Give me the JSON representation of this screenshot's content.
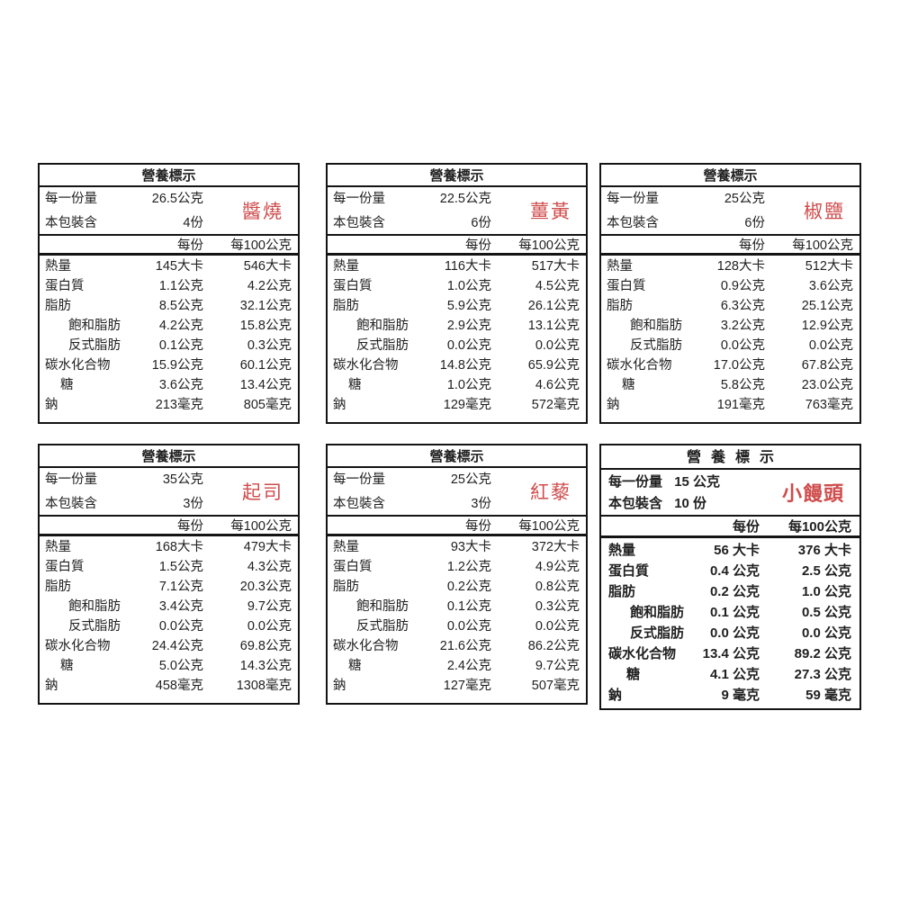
{
  "page": {
    "background": "#ffffff",
    "text_color": "#1f1f1f",
    "border_color": "#141414",
    "accent_red": "#cf4b4b"
  },
  "labels": [
    {
      "variant": "standard",
      "title": "營養標示",
      "product_name": "醬燒",
      "serving": {
        "size_label": "每一份量",
        "size_value": "26.5公克",
        "pack_label": "本包裝含",
        "pack_value": "4份"
      },
      "columns": {
        "per_serving": "每份",
        "per_100g": "每100公克"
      },
      "rows": [
        {
          "name": "熱量",
          "indent": 0,
          "per_serving": "145大卡",
          "per_100g": "546大卡"
        },
        {
          "name": "蛋白質",
          "indent": 0,
          "per_serving": "1.1公克",
          "per_100g": "4.2公克"
        },
        {
          "name": "脂肪",
          "indent": 0,
          "per_serving": "8.5公克",
          "per_100g": "32.1公克"
        },
        {
          "name": "飽和脂肪",
          "indent": 2,
          "per_serving": "4.2公克",
          "per_100g": "15.8公克"
        },
        {
          "name": "反式脂肪",
          "indent": 2,
          "per_serving": "0.1公克",
          "per_100g": "0.3公克"
        },
        {
          "name": "碳水化合物",
          "indent": 0,
          "per_serving": "15.9公克",
          "per_100g": "60.1公克"
        },
        {
          "name": "糖",
          "indent": 1,
          "per_serving": "3.6公克",
          "per_100g": "13.4公克"
        },
        {
          "name": "鈉",
          "indent": 0,
          "per_serving": "213毫克",
          "per_100g": "805毫克"
        }
      ]
    },
    {
      "variant": "standard",
      "title": "營養標示",
      "product_name": "薑黃",
      "serving": {
        "size_label": "每一份量",
        "size_value": "22.5公克",
        "pack_label": "本包裝含",
        "pack_value": "6份"
      },
      "columns": {
        "per_serving": "每份",
        "per_100g": "每100公克"
      },
      "rows": [
        {
          "name": "熱量",
          "indent": 0,
          "per_serving": "116大卡",
          "per_100g": "517大卡"
        },
        {
          "name": "蛋白質",
          "indent": 0,
          "per_serving": "1.0公克",
          "per_100g": "4.5公克"
        },
        {
          "name": "脂肪",
          "indent": 0,
          "per_serving": "5.9公克",
          "per_100g": "26.1公克"
        },
        {
          "name": "飽和脂肪",
          "indent": 2,
          "per_serving": "2.9公克",
          "per_100g": "13.1公克"
        },
        {
          "name": "反式脂肪",
          "indent": 2,
          "per_serving": "0.0公克",
          "per_100g": "0.0公克"
        },
        {
          "name": "碳水化合物",
          "indent": 0,
          "per_serving": "14.8公克",
          "per_100g": "65.9公克"
        },
        {
          "name": "糖",
          "indent": 1,
          "per_serving": "1.0公克",
          "per_100g": "4.6公克"
        },
        {
          "name": "鈉",
          "indent": 0,
          "per_serving": "129毫克",
          "per_100g": "572毫克"
        }
      ]
    },
    {
      "variant": "standard",
      "title": "營養標示",
      "product_name": "椒鹽",
      "serving": {
        "size_label": "每一份量",
        "size_value": "25公克",
        "pack_label": "本包裝含",
        "pack_value": "6份"
      },
      "columns": {
        "per_serving": "每份",
        "per_100g": "每100公克"
      },
      "rows": [
        {
          "name": "熱量",
          "indent": 0,
          "per_serving": "128大卡",
          "per_100g": "512大卡"
        },
        {
          "name": "蛋白質",
          "indent": 0,
          "per_serving": "0.9公克",
          "per_100g": "3.6公克"
        },
        {
          "name": "脂肪",
          "indent": 0,
          "per_serving": "6.3公克",
          "per_100g": "25.1公克"
        },
        {
          "name": "飽和脂肪",
          "indent": 2,
          "per_serving": "3.2公克",
          "per_100g": "12.9公克"
        },
        {
          "name": "反式脂肪",
          "indent": 2,
          "per_serving": "0.0公克",
          "per_100g": "0.0公克"
        },
        {
          "name": "碳水化合物",
          "indent": 0,
          "per_serving": "17.0公克",
          "per_100g": "67.8公克"
        },
        {
          "name": "糖",
          "indent": 1,
          "per_serving": "5.8公克",
          "per_100g": "23.0公克"
        },
        {
          "name": "鈉",
          "indent": 0,
          "per_serving": "191毫克",
          "per_100g": "763毫克"
        }
      ]
    },
    {
      "variant": "standard",
      "title": "營養標示",
      "product_name": "起司",
      "serving": {
        "size_label": "每一份量",
        "size_value": "35公克",
        "pack_label": "本包裝含",
        "pack_value": "3份"
      },
      "columns": {
        "per_serving": "每份",
        "per_100g": "每100公克"
      },
      "rows": [
        {
          "name": "熱量",
          "indent": 0,
          "per_serving": "168大卡",
          "per_100g": "479大卡"
        },
        {
          "name": "蛋白質",
          "indent": 0,
          "per_serving": "1.5公克",
          "per_100g": "4.3公克"
        },
        {
          "name": "脂肪",
          "indent": 0,
          "per_serving": "7.1公克",
          "per_100g": "20.3公克"
        },
        {
          "name": "飽和脂肪",
          "indent": 2,
          "per_serving": "3.4公克",
          "per_100g": "9.7公克"
        },
        {
          "name": "反式脂肪",
          "indent": 2,
          "per_serving": "0.0公克",
          "per_100g": "0.0公克"
        },
        {
          "name": "碳水化合物",
          "indent": 0,
          "per_serving": "24.4公克",
          "per_100g": "69.8公克"
        },
        {
          "name": "糖",
          "indent": 1,
          "per_serving": "5.0公克",
          "per_100g": "14.3公克"
        },
        {
          "name": "鈉",
          "indent": 0,
          "per_serving": "458毫克",
          "per_100g": "1308毫克"
        }
      ]
    },
    {
      "variant": "standard",
      "title": "營養標示",
      "product_name": "紅藜",
      "serving": {
        "size_label": "每一份量",
        "size_value": "25公克",
        "pack_label": "本包裝含",
        "pack_value": "3份"
      },
      "columns": {
        "per_serving": "每份",
        "per_100g": "每100公克"
      },
      "rows": [
        {
          "name": "熱量",
          "indent": 0,
          "per_serving": "93大卡",
          "per_100g": "372大卡"
        },
        {
          "name": "蛋白質",
          "indent": 0,
          "per_serving": "1.2公克",
          "per_100g": "4.9公克"
        },
        {
          "name": "脂肪",
          "indent": 0,
          "per_serving": "0.2公克",
          "per_100g": "0.8公克"
        },
        {
          "name": "飽和脂肪",
          "indent": 2,
          "per_serving": "0.1公克",
          "per_100g": "0.3公克"
        },
        {
          "name": "反式脂肪",
          "indent": 2,
          "per_serving": "0.0公克",
          "per_100g": "0.0公克"
        },
        {
          "name": "碳水化合物",
          "indent": 0,
          "per_serving": "21.6公克",
          "per_100g": "86.2公克"
        },
        {
          "name": "糖",
          "indent": 1,
          "per_serving": "2.4公克",
          "per_100g": "9.7公克"
        },
        {
          "name": "鈉",
          "indent": 0,
          "per_serving": "127毫克",
          "per_100g": "507毫克"
        }
      ]
    },
    {
      "variant": "spaced",
      "title": "營養標示",
      "product_name": "小饅頭",
      "serving": {
        "size_label": "每一份量",
        "size_value": "15 公克",
        "pack_label": "本包裝含",
        "pack_value": "10 份"
      },
      "columns": {
        "per_serving": "每份",
        "per_100g": "每100公克"
      },
      "rows": [
        {
          "name": "熱量",
          "indent": 0,
          "per_serving": "56 大卡",
          "per_100g": "376 大卡"
        },
        {
          "name": "蛋白質",
          "indent": 0,
          "per_serving": "0.4 公克",
          "per_100g": "2.5 公克"
        },
        {
          "name": "脂肪",
          "indent": 0,
          "per_serving": "0.2 公克",
          "per_100g": "1.0 公克"
        },
        {
          "name": "飽和脂肪",
          "indent": 2,
          "per_serving": "0.1 公克",
          "per_100g": "0.5 公克"
        },
        {
          "name": "反式脂肪",
          "indent": 2,
          "per_serving": "0.0 公克",
          "per_100g": "0.0 公克"
        },
        {
          "name": "碳水化合物",
          "indent": 0,
          "per_serving": "13.4 公克",
          "per_100g": "89.2 公克"
        },
        {
          "name": "糖",
          "indent": 1,
          "per_serving": "4.1 公克",
          "per_100g": "27.3 公克"
        },
        {
          "name": "鈉",
          "indent": 0,
          "per_serving": "9 毫克",
          "per_100g": "59 毫克"
        }
      ]
    }
  ]
}
